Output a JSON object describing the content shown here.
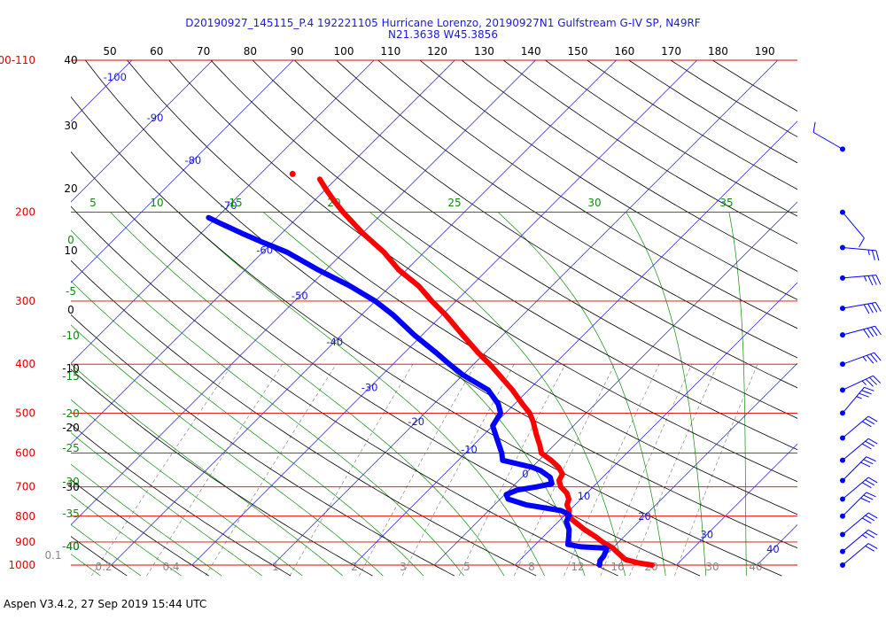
{
  "header": {
    "title_line1": "D20190927_145115_P.4 192221105 Hurricane Lorenzo, 20190927N1 Gulfstream G-IV SP, N49RF",
    "title_line2": "N21.3638 W45.3856"
  },
  "footer": {
    "text": "Aspen V3.4.2, 27 Sep 2019  15:44 UTC"
  },
  "colors": {
    "isobar": "#dd0000",
    "isotherm": "#1a1adc",
    "dry_adiabat": "#000000",
    "moist_adiabat": "#118811",
    "mixing_ratio": "#888888",
    "temperature_trace": "#ff0000",
    "dewpoint_trace": "#0000ff"
  },
  "chart_data": {
    "type": "line",
    "chart_kind": "skew-T log-P diagram",
    "pressure_labels": [
      {
        "p": 100,
        "text": "100-110"
      },
      {
        "p": 200,
        "text": "200"
      },
      {
        "p": 300,
        "text": "300"
      },
      {
        "p": 400,
        "text": "400"
      },
      {
        "p": 500,
        "text": "500"
      },
      {
        "p": 600,
        "text": "600"
      },
      {
        "p": 700,
        "text": "700"
      },
      {
        "p": 800,
        "text": "800"
      },
      {
        "p": 900,
        "text": "900"
      },
      {
        "p": 1000,
        "text": "1000"
      }
    ],
    "top_ticks": [
      "50",
      "60",
      "70",
      "80",
      "90",
      "100",
      "110",
      "120",
      "130",
      "140",
      "150",
      "160",
      "170",
      "180",
      "190"
    ],
    "isotherm_labels": [
      "-100",
      "-90",
      "-80",
      "-70",
      "-60",
      "-50",
      "-40",
      "-30",
      "-20",
      "-10",
      "0",
      "10",
      "20",
      "30",
      "40"
    ],
    "dry_adiabat_labels": [
      "40",
      "30",
      "20",
      "10",
      "0",
      "-10",
      "-20",
      "-30",
      "-40"
    ],
    "moist_adiabat_top_labels": [
      "5",
      "10",
      "15",
      "20",
      "25",
      "30",
      "35"
    ],
    "moist_adiabat_left_labels": [
      "0",
      "-5",
      "-10",
      "-15",
      "-20",
      "-25",
      "-30",
      "-35",
      "-40"
    ],
    "mixing_ratio_labels": [
      "0.1",
      "0.2",
      "0.4",
      "1",
      "2",
      "3",
      "5",
      "8",
      "12",
      "16",
      "20",
      "28",
      "30",
      "40"
    ],
    "series": [
      {
        "name": "",
        "kind": "temperature",
        "points": [
          {
            "p": 1000,
            "t": 27.0
          },
          {
            "p": 990,
            "t": 25.0
          },
          {
            "p": 975,
            "t": 23.0
          },
          {
            "p": 950,
            "t": 21.5
          },
          {
            "p": 925,
            "t": 20.0
          },
          {
            "p": 900,
            "t": 18.0
          },
          {
            "p": 880,
            "t": 16.6
          },
          {
            "p": 850,
            "t": 14.2
          },
          {
            "p": 820,
            "t": 12.0
          },
          {
            "p": 800,
            "t": 10.5
          },
          {
            "p": 780,
            "t": 10.0
          },
          {
            "p": 760,
            "t": 9.0
          },
          {
            "p": 740,
            "t": 8.5
          },
          {
            "p": 720,
            "t": 7.5
          },
          {
            "p": 700,
            "t": 6.0
          },
          {
            "p": 680,
            "t": 5.0
          },
          {
            "p": 660,
            "t": 4.6
          },
          {
            "p": 640,
            "t": 3.3
          },
          {
            "p": 620,
            "t": 1.5
          },
          {
            "p": 600,
            "t": -0.6
          },
          {
            "p": 580,
            "t": -1.7
          },
          {
            "p": 550,
            "t": -3.6
          },
          {
            "p": 520,
            "t": -5.5
          },
          {
            "p": 500,
            "t": -7.0
          },
          {
            "p": 480,
            "t": -9.0
          },
          {
            "p": 450,
            "t": -12.0
          },
          {
            "p": 420,
            "t": -15.5
          },
          {
            "p": 400,
            "t": -18.0
          },
          {
            "p": 380,
            "t": -20.8
          },
          {
            "p": 350,
            "t": -25.0
          },
          {
            "p": 320,
            "t": -29.5
          },
          {
            "p": 300,
            "t": -33.0
          },
          {
            "p": 280,
            "t": -36.5
          },
          {
            "p": 260,
            "t": -41.0
          },
          {
            "p": 240,
            "t": -45.0
          },
          {
            "p": 220,
            "t": -50.0
          },
          {
            "p": 200,
            "t": -55.0
          },
          {
            "p": 190,
            "t": -57.5
          },
          {
            "p": 180,
            "t": -60.0
          },
          {
            "p": 172,
            "t": -62.0
          }
        ]
      },
      {
        "name": "",
        "kind": "dewpoint",
        "points": [
          {
            "p": 1000,
            "t": 20.5
          },
          {
            "p": 980,
            "t": 20.0
          },
          {
            "p": 960,
            "t": 19.9
          },
          {
            "p": 930,
            "t": 19.4
          },
          {
            "p": 925,
            "t": 19.0
          },
          {
            "p": 920,
            "t": 16.0
          },
          {
            "p": 910,
            "t": 14.0
          },
          {
            "p": 880,
            "t": 13.2
          },
          {
            "p": 850,
            "t": 12.3
          },
          {
            "p": 820,
            "t": 11.0
          },
          {
            "p": 795,
            "t": 10.5
          },
          {
            "p": 780,
            "t": 9.0
          },
          {
            "p": 760,
            "t": 4.0
          },
          {
            "p": 740,
            "t": 1.0
          },
          {
            "p": 725,
            "t": 0.2
          },
          {
            "p": 710,
            "t": 1.0
          },
          {
            "p": 700,
            "t": 3.0
          },
          {
            "p": 690,
            "t": 4.5
          },
          {
            "p": 670,
            "t": 3.5
          },
          {
            "p": 650,
            "t": 1.5
          },
          {
            "p": 640,
            "t": 0.0
          },
          {
            "p": 620,
            "t": -4.5
          },
          {
            "p": 600,
            "t": -5.5
          },
          {
            "p": 560,
            "t": -8.0
          },
          {
            "p": 530,
            "t": -10.0
          },
          {
            "p": 500,
            "t": -10.6
          },
          {
            "p": 480,
            "t": -12.0
          },
          {
            "p": 450,
            "t": -15.0
          },
          {
            "p": 420,
            "t": -20.0
          },
          {
            "p": 400,
            "t": -23.0
          },
          {
            "p": 380,
            "t": -26.0
          },
          {
            "p": 350,
            "t": -31.0
          },
          {
            "p": 320,
            "t": -36.0
          },
          {
            "p": 300,
            "t": -40.0
          },
          {
            "p": 280,
            "t": -45.0
          },
          {
            "p": 260,
            "t": -51.0
          },
          {
            "p": 240,
            "t": -57.0
          },
          {
            "p": 230,
            "t": -61.0
          },
          {
            "p": 220,
            "t": -65.0
          },
          {
            "p": 210,
            "t": -69.0
          },
          {
            "p": 205,
            "t": -71.0
          }
        ]
      }
    ],
    "outlier_point": {
      "p": 168,
      "t": -66
    },
    "wind_barbs": [
      {
        "p": 150,
        "dir_deg": 300,
        "speed_kt": 10
      },
      {
        "p": 200,
        "dir_deg": 140,
        "speed_kt": 10
      },
      {
        "p": 235,
        "dir_deg": 95,
        "speed_kt": 25
      },
      {
        "p": 270,
        "dir_deg": 85,
        "speed_kt": 35
      },
      {
        "p": 310,
        "dir_deg": 80,
        "speed_kt": 40
      },
      {
        "p": 350,
        "dir_deg": 75,
        "speed_kt": 40
      },
      {
        "p": 400,
        "dir_deg": 70,
        "speed_kt": 35
      },
      {
        "p": 450,
        "dir_deg": 65,
        "speed_kt": 35
      },
      {
        "p": 500,
        "dir_deg": 40,
        "speed_kt": 35
      },
      {
        "p": 560,
        "dir_deg": 50,
        "speed_kt": 30
      },
      {
        "p": 620,
        "dir_deg": 50,
        "speed_kt": 30
      },
      {
        "p": 680,
        "dir_deg": 45,
        "speed_kt": 30
      },
      {
        "p": 740,
        "dir_deg": 50,
        "speed_kt": 30
      },
      {
        "p": 800,
        "dir_deg": 45,
        "speed_kt": 30
      },
      {
        "p": 870,
        "dir_deg": 50,
        "speed_kt": 30
      },
      {
        "p": 940,
        "dir_deg": 50,
        "speed_kt": 25
      },
      {
        "p": 1000,
        "dir_deg": 50,
        "speed_kt": 20
      }
    ],
    "xlim_temp_at_1000": [
      -45,
      45
    ],
    "ylim_pressure": [
      1000,
      100
    ],
    "log_pressure_axis": true,
    "grid": true,
    "legend": "none"
  }
}
